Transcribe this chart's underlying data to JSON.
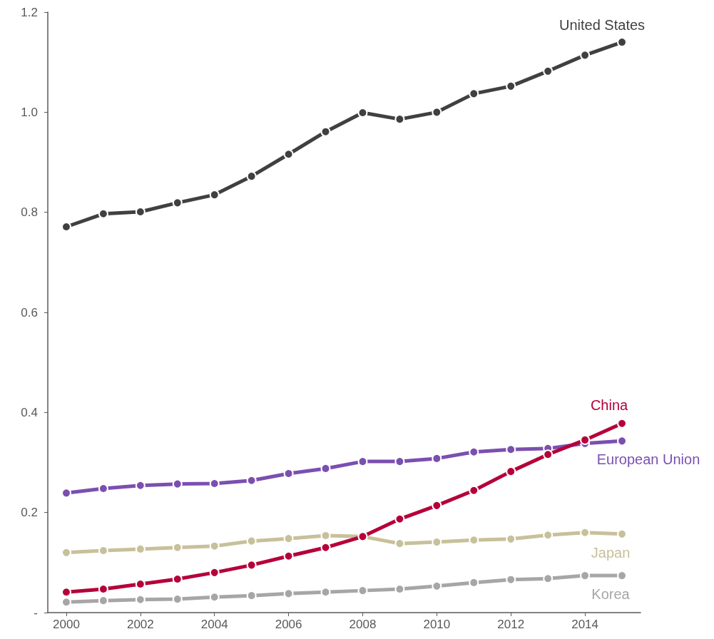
{
  "chart_data": {
    "type": "line",
    "x": [
      2000,
      2001,
      2002,
      2003,
      2004,
      2005,
      2006,
      2007,
      2008,
      2009,
      2010,
      2011,
      2012,
      2013,
      2014,
      2015
    ],
    "xlim": [
      1999.5,
      2015.5
    ],
    "xticks": [
      2000,
      2002,
      2004,
      2006,
      2008,
      2010,
      2012,
      2014
    ],
    "ylim": [
      0,
      1.2
    ],
    "yticks": [
      {
        "value": 0,
        "label": "-"
      },
      0.2,
      0.4,
      0.6,
      0.8,
      {
        "value": 1,
        "label": "1.0"
      },
      1.2
    ],
    "grid": false,
    "legend": false,
    "marker": "circle",
    "line_style": "solid",
    "series": [
      {
        "name": "United States",
        "color": "#404040",
        "values": [
          0.771,
          0.797,
          0.801,
          0.819,
          0.835,
          0.872,
          0.916,
          0.961,
          0.999,
          0.986,
          1.0,
          1.037,
          1.052,
          1.082,
          1.114,
          1.14
        ]
      },
      {
        "name": "China",
        "color": "#b5003a",
        "values": [
          0.041,
          0.047,
          0.057,
          0.067,
          0.08,
          0.095,
          0.113,
          0.13,
          0.152,
          0.187,
          0.214,
          0.244,
          0.282,
          0.316,
          0.345,
          0.378
        ]
      },
      {
        "name": "European Union",
        "color": "#7b4fb0",
        "values": [
          0.239,
          0.248,
          0.254,
          0.257,
          0.258,
          0.264,
          0.278,
          0.288,
          0.302,
          0.302,
          0.308,
          0.321,
          0.326,
          0.328,
          0.338,
          0.343
        ]
      },
      {
        "name": "Japan",
        "color": "#c8c09a",
        "values": [
          0.12,
          0.124,
          0.127,
          0.13,
          0.133,
          0.143,
          0.148,
          0.154,
          0.152,
          0.138,
          0.141,
          0.145,
          0.147,
          0.155,
          0.16,
          0.157
        ]
      },
      {
        "name": "Korea",
        "color": "#a6a6a6",
        "values": [
          0.021,
          0.024,
          0.026,
          0.027,
          0.031,
          0.034,
          0.038,
          0.041,
          0.044,
          0.047,
          0.053,
          0.06,
          0.066,
          0.068,
          0.074,
          0.074
        ]
      }
    ]
  }
}
